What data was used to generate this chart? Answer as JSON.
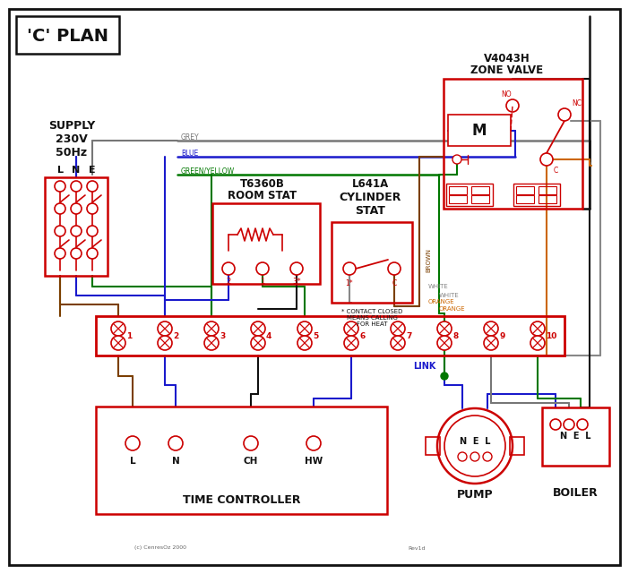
{
  "bg": "#ffffff",
  "red": "#cc0000",
  "blue": "#1a1acc",
  "green": "#007700",
  "grey": "#777777",
  "brown": "#7B3F00",
  "orange": "#cc6600",
  "black": "#111111",
  "white_wire": "#888888",
  "title": "'C' PLAN",
  "supply_lines": [
    "SUPPLY",
    "230V",
    "50Hz"
  ],
  "lne": [
    "L",
    "N",
    "E"
  ],
  "term_labels": [
    "1",
    "2",
    "3",
    "4",
    "5",
    "6",
    "7",
    "8",
    "9",
    "10"
  ],
  "tc_labels": [
    "L",
    "N",
    "CH",
    "HW"
  ],
  "tc_title": "TIME CONTROLLER",
  "pump_title": "PUMP",
  "boiler_title": "BOILER",
  "rs_title1": "T6360B",
  "rs_title2": "ROOM STAT",
  "cs_title1": "L641A",
  "cs_title2": "CYLINDER",
  "cs_title3": "STAT",
  "zv_title1": "V4043H",
  "zv_title2": "ZONE VALVE",
  "contact_note": "* CONTACT CLOSED\nMEANS CALLING\nFOR HEAT",
  "wire_grey": "GREY",
  "wire_blue": "BLUE",
  "wire_gy": "GREEN/YELLOW",
  "wire_brown": "BROWN",
  "wire_white": "WHITE",
  "wire_orange": "ORANGE",
  "link_label": "LINK",
  "copyright": "(c) CenresOz 2000",
  "revision": "Rev1d",
  "nel_pump": "N  E  L",
  "nel_boiler": "N  E  L",
  "motor_label": "M",
  "no_label": "NO",
  "nc_label": "NC",
  "c_label": "C"
}
